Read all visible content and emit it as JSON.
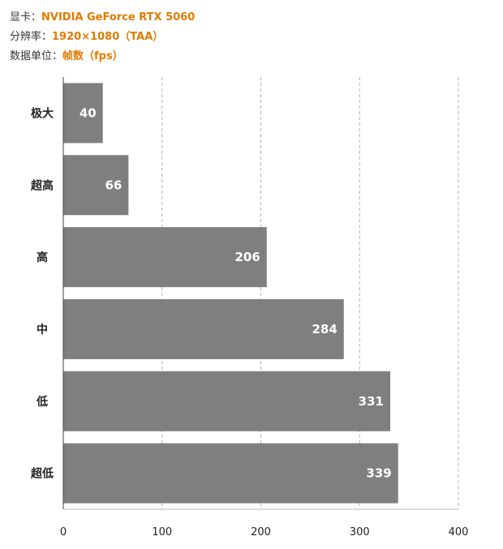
{
  "header": {
    "gpu_label": "显卡：",
    "gpu_value": "NVIDIA GeForce RTX 5060",
    "res_label": "分辨率：",
    "res_value": "1920×1080（TAA）",
    "unit_label": "数据单位：",
    "unit_value": "帧数（fps）"
  },
  "colors": {
    "bar": "#7f7f7f",
    "accent": "#e07b00",
    "grid": "#b0b0b0"
  },
  "chart_data": {
    "type": "bar",
    "orientation": "horizontal",
    "categories": [
      "极大",
      "超高",
      "高",
      "中",
      "低",
      "超低"
    ],
    "values": [
      40,
      66,
      206,
      284,
      331,
      339
    ],
    "xlim": [
      0,
      400
    ],
    "xticks": [
      0,
      100,
      200,
      300,
      400
    ],
    "grid": "vertical dashed",
    "title": "",
    "xlabel": "",
    "ylabel": ""
  }
}
